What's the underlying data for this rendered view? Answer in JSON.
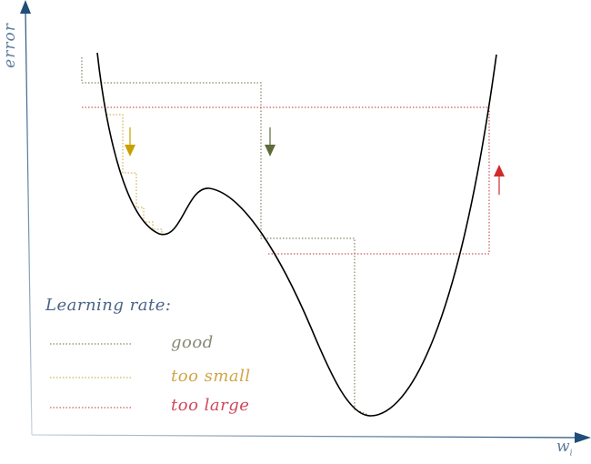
{
  "axes": {
    "y_label": "error",
    "x_label": "w",
    "x_label_sub": "i",
    "axis_color": "#1f4e79"
  },
  "legend": {
    "title": "Learning rate:",
    "items": [
      {
        "label": "good",
        "color": "#6b6a4a",
        "text_color": "#888a76"
      },
      {
        "label": "too small",
        "color": "#c9a227",
        "text_color": "#d1a545"
      },
      {
        "label": "too large",
        "color": "#c0303a",
        "text_color": "#d0485a"
      }
    ]
  },
  "arrows": [
    {
      "meaning": "error decreasing",
      "direction": "down",
      "color": "#c9a000"
    },
    {
      "meaning": "error decreasing",
      "direction": "down",
      "color": "#5e6a3a"
    },
    {
      "meaning": "error increasing",
      "direction": "up",
      "color": "#d02a2a"
    }
  ],
  "curve": {
    "description": "error curve with local minimum and global minimum",
    "color": "#000000"
  }
}
